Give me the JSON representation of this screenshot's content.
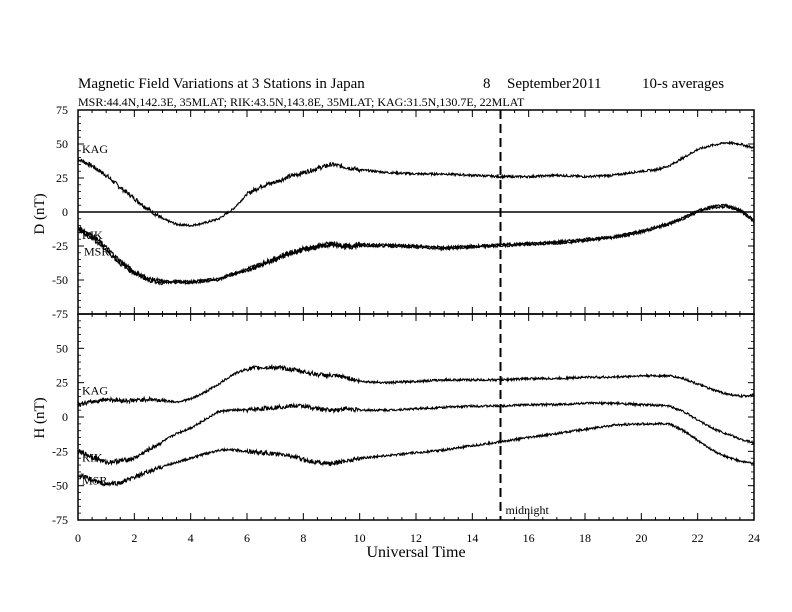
{
  "header": {
    "title_main": "Magnetic Field Variations at 3 Stations in Japan",
    "title_day": "8",
    "title_month": "September",
    "title_year": "2011",
    "title_avg": "10-s averages",
    "subtitle": "MSR:44.4N,142.3E, 35MLAT;  RIK:43.5N,143.8E, 35MLAT;  KAG:31.5N,130.7E, 22MLAT"
  },
  "chart_data": [
    {
      "type": "line",
      "panel": "D",
      "ylabel": "D (nT)",
      "ylim": [
        -75,
        75
      ],
      "yticks": [
        "75",
        "50",
        "25",
        "0",
        "-25",
        "-50",
        "-75"
      ],
      "xlim": [
        0,
        24
      ],
      "zero_line": true,
      "series": [
        {
          "name": "KAG",
          "x": [
            0,
            0.5,
            1,
            1.5,
            2,
            2.5,
            3,
            3.5,
            4,
            4.5,
            5,
            5.5,
            6,
            6.5,
            7,
            7.5,
            8,
            8.5,
            9,
            9.5,
            10,
            11,
            12,
            13,
            14,
            15,
            16,
            17,
            18,
            19,
            20,
            20.5,
            21,
            21.5,
            22,
            22.5,
            23,
            23.5,
            24
          ],
          "y": [
            39,
            34,
            27,
            18,
            10,
            2,
            -5,
            -9,
            -10,
            -8,
            -5,
            2,
            13,
            19,
            22,
            26,
            29,
            32,
            35,
            33,
            31,
            29,
            28,
            28,
            27,
            26,
            26,
            27,
            26,
            27,
            30,
            31,
            34,
            40,
            46,
            49,
            51,
            50,
            47
          ]
        },
        {
          "name": "RIK",
          "x": [
            0,
            0.5,
            1,
            1.5,
            2,
            2.5,
            3,
            4,
            5,
            5.5,
            6,
            6.5,
            7,
            7.5,
            8,
            8.5,
            9,
            9.5,
            10,
            11,
            12,
            13,
            14,
            15,
            16,
            17,
            18,
            19,
            20,
            21,
            21.5,
            22,
            22.5,
            23,
            23.5,
            24
          ],
          "y": [
            -11,
            -17,
            -26,
            -36,
            -44,
            -49,
            -51,
            -51,
            -49,
            -45,
            -42,
            -38,
            -34,
            -30,
            -27,
            -25,
            -23,
            -25,
            -24,
            -24,
            -25,
            -26,
            -25,
            -24,
            -23,
            -22,
            -20,
            -18,
            -14,
            -8,
            -4,
            1,
            4,
            5,
            2,
            -6
          ]
        },
        {
          "name": "MSR",
          "x": [
            0,
            0.5,
            1,
            1.5,
            2,
            2.5,
            3,
            4,
            5,
            5.5,
            6,
            6.5,
            7,
            7.5,
            8,
            8.5,
            9,
            9.5,
            10,
            11,
            12,
            13,
            14,
            15,
            16,
            17,
            18,
            19,
            20,
            21,
            21.5,
            22,
            22.5,
            23,
            23.5,
            24
          ],
          "y": [
            -13,
            -19,
            -28,
            -38,
            -45,
            -50,
            -52,
            -52,
            -50,
            -46,
            -43,
            -39,
            -35,
            -31,
            -28,
            -26,
            -24,
            -26,
            -25,
            -25,
            -26,
            -27,
            -26,
            -25,
            -24,
            -23,
            -21,
            -19,
            -15,
            -9,
            -5,
            0,
            3,
            4,
            1,
            -7
          ]
        }
      ],
      "series_labels": [
        "KAG",
        "RIK",
        "MSR"
      ]
    },
    {
      "type": "line",
      "panel": "H",
      "ylabel": "H (nT)",
      "xlabel": "Universal Time",
      "ylim": [
        -75,
        75
      ],
      "yticks": [
        "50",
        "25",
        "0",
        "-25",
        "-50",
        "-75"
      ],
      "xlim": [
        0,
        24
      ],
      "xticks": [
        "0",
        "2",
        "4",
        "6",
        "8",
        "10",
        "12",
        "14",
        "16",
        "18",
        "20",
        "22",
        "24"
      ],
      "series": [
        {
          "name": "KAG",
          "x": [
            0,
            0.5,
            1,
            1.5,
            2,
            2.5,
            3,
            3.5,
            4,
            4.5,
            5,
            5.5,
            6,
            6.5,
            7,
            7.5,
            8,
            8.5,
            9,
            9.5,
            10,
            11,
            12,
            13,
            14,
            15,
            16,
            17,
            18,
            19,
            20,
            21,
            21.5,
            22,
            22.5,
            23,
            23.5,
            24
          ],
          "y": [
            9,
            11,
            13,
            12,
            12,
            13,
            12,
            11,
            13,
            18,
            24,
            31,
            35,
            36,
            36,
            35,
            33,
            31,
            30,
            29,
            26,
            25,
            26,
            27,
            27,
            27,
            28,
            28,
            29,
            29,
            30,
            30,
            28,
            24,
            20,
            17,
            15,
            16
          ]
        },
        {
          "name": "RIK",
          "x": [
            0,
            0.5,
            1,
            1.5,
            2,
            2.5,
            3,
            3.5,
            4,
            4.5,
            5,
            5.5,
            6,
            6.5,
            7,
            7.5,
            8,
            8.5,
            9,
            9.5,
            10,
            11,
            12,
            13,
            14,
            15,
            16,
            17,
            18,
            19,
            20,
            21,
            21.5,
            22,
            22.5,
            23,
            23.5,
            24
          ],
          "y": [
            -25,
            -29,
            -33,
            -32,
            -30,
            -24,
            -18,
            -12,
            -8,
            -2,
            4,
            5,
            5,
            6,
            7,
            8,
            8,
            6,
            5,
            6,
            5,
            5,
            6,
            7,
            8,
            8,
            9,
            9,
            10,
            10,
            9,
            8,
            4,
            -2,
            -8,
            -12,
            -16,
            -19
          ]
        },
        {
          "name": "MSR",
          "x": [
            0,
            0.5,
            1,
            1.5,
            2,
            2.5,
            3,
            3.5,
            4,
            4.5,
            5,
            5.5,
            6,
            6.5,
            7,
            7.5,
            8,
            8.5,
            9,
            9.5,
            10,
            11,
            12,
            13,
            14,
            15,
            16,
            17,
            18,
            19,
            20,
            21,
            21.5,
            22,
            22.5,
            23,
            23.5,
            24
          ],
          "y": [
            -42,
            -46,
            -49,
            -48,
            -44,
            -40,
            -36,
            -33,
            -30,
            -27,
            -24,
            -24,
            -25,
            -26,
            -27,
            -28,
            -31,
            -33,
            -34,
            -32,
            -30,
            -28,
            -26,
            -24,
            -21,
            -18,
            -15,
            -12,
            -9,
            -6,
            -5,
            -5,
            -10,
            -17,
            -24,
            -29,
            -32,
            -34
          ]
        }
      ],
      "series_labels": [
        "KAG",
        "RIK",
        "MSR"
      ]
    }
  ],
  "annotations": {
    "midnight_ut": 15,
    "midnight_label": "midnight"
  },
  "colors": {
    "line": "#000000",
    "background": "#ffffff"
  }
}
